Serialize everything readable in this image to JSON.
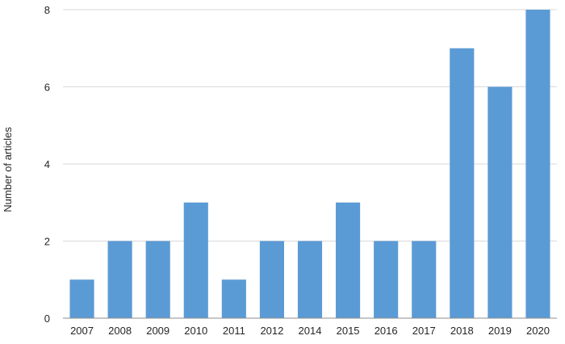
{
  "chart_data": {
    "type": "bar",
    "title": "",
    "xlabel": "",
    "ylabel": "Number of articles",
    "categories": [
      "2007",
      "2008",
      "2009",
      "2010",
      "2011",
      "2012",
      "2014",
      "2015",
      "2016",
      "2017",
      "2018",
      "2019",
      "2020"
    ],
    "values": [
      1,
      2,
      2,
      3,
      1,
      2,
      2,
      3,
      2,
      2,
      7,
      6,
      8
    ],
    "ylim": [
      0,
      8
    ],
    "yticks": [
      0,
      2,
      4,
      6,
      8
    ],
    "grid": true,
    "legend": "none",
    "bar_color": "#5b9bd5",
    "grid_color": "#d9d9d9",
    "axis_color": "#8c8c8c"
  }
}
